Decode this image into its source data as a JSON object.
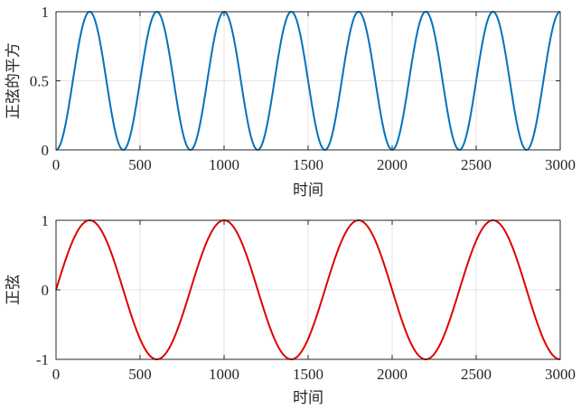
{
  "chart_data": [
    {
      "type": "line",
      "ylabel": "正弦的平方",
      "xlabel": "时间",
      "xlim": [
        0,
        3000
      ],
      "ylim": [
        0,
        1
      ],
      "xticks": [
        0,
        500,
        1000,
        1500,
        2000,
        2500,
        3000
      ],
      "yticks": [
        0,
        0.5,
        1
      ],
      "xtick_labels": [
        "0",
        "500",
        "1000",
        "1500",
        "2000",
        "2500",
        "3000"
      ],
      "ytick_labels": [
        "0",
        "0.5",
        "1"
      ],
      "grid": true,
      "series": [
        {
          "function": "sin(2*pi*x/800)^2",
          "period": 400,
          "color": "#0072BD"
        }
      ]
    },
    {
      "type": "line",
      "ylabel": "正弦",
      "xlabel": "时间",
      "xlim": [
        0,
        3000
      ],
      "ylim": [
        -1,
        1
      ],
      "xticks": [
        0,
        500,
        1000,
        1500,
        2000,
        2500,
        3000
      ],
      "yticks": [
        -1,
        0,
        1
      ],
      "xtick_labels": [
        "0",
        "500",
        "1000",
        "1500",
        "2000",
        "2500",
        "3000"
      ],
      "ytick_labels": [
        "-1",
        "0",
        "1"
      ],
      "grid": true,
      "series": [
        {
          "function": "sin(2*pi*x/800)",
          "period": 800,
          "color": "#E00000"
        }
      ]
    }
  ]
}
